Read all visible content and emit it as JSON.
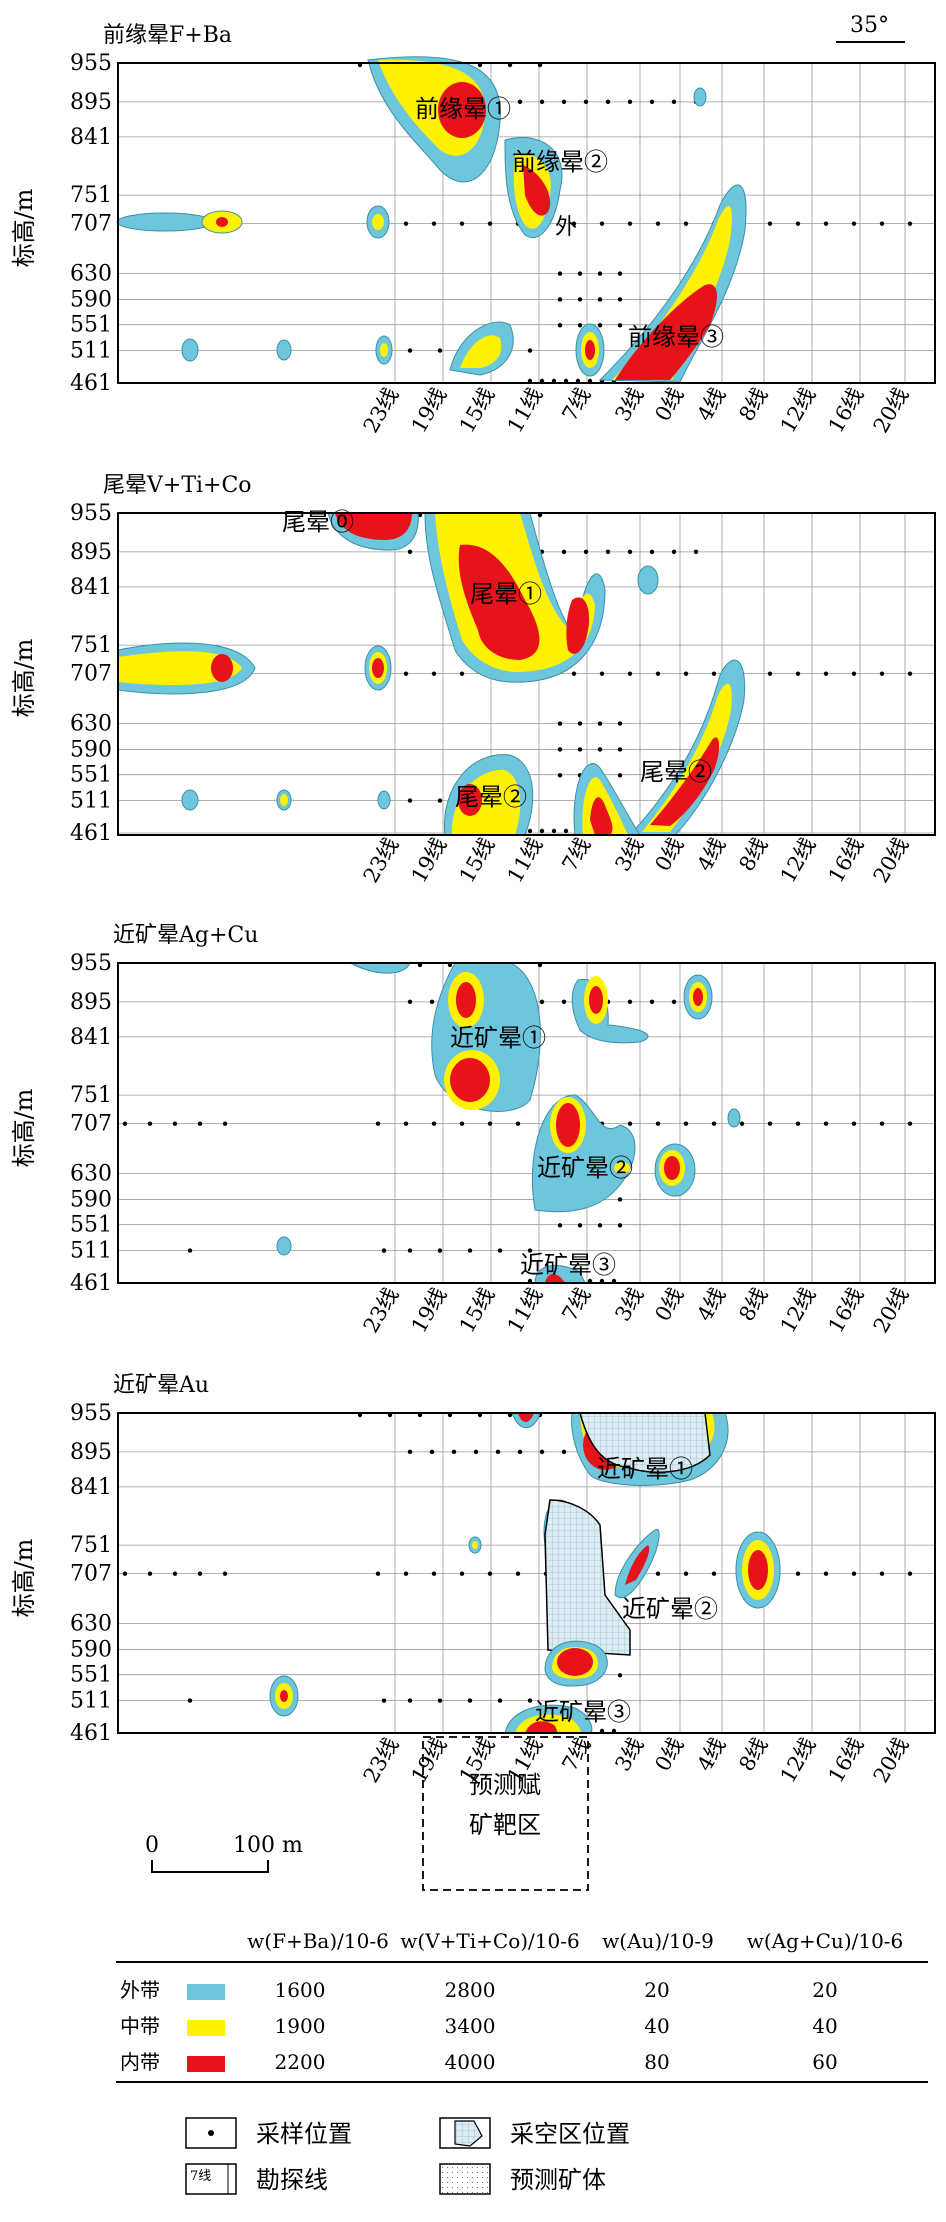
{
  "panels": [
    {
      "title": "前缘晕F+Ba",
      "labels": [
        {
          "text": "前缘晕①"
        },
        {
          "text": "前缘晕②"
        },
        {
          "text": "外"
        },
        {
          "text": "前缘晕③"
        }
      ]
    },
    {
      "title": "尾晕V+Ti+Co",
      "labels": [
        {
          "text": "尾晕⓪"
        },
        {
          "text": "尾晕①"
        },
        {
          "text": "尾晕②"
        },
        {
          "text": "尾晕②"
        }
      ]
    },
    {
      "title": "近矿晕Ag+Cu",
      "labels": [
        {
          "text": "近矿晕①"
        },
        {
          "text": "近矿晕②"
        },
        {
          "text": "近矿晕③"
        }
      ]
    },
    {
      "title": "近矿晕Au",
      "labels": [
        {
          "text": "近矿晕①"
        },
        {
          "text": "近矿晕②"
        },
        {
          "text": "近矿晕③"
        }
      ]
    }
  ],
  "y_axis_label": "标高/m",
  "elevations": [
    "955",
    "895",
    "841",
    "751",
    "707",
    "630",
    "590",
    "551",
    "511",
    "461"
  ],
  "lines": [
    "23线",
    "19线",
    "15线",
    "11线",
    "7线",
    "3线",
    "0线",
    "4线",
    "8线",
    "12线",
    "16线",
    "20线"
  ],
  "north_arrow": "35°",
  "scale": {
    "zero": "0",
    "length": "100 m"
  },
  "target_box": {
    "line1": "预测赋",
    "line2": "矿靶区"
  },
  "legend_table": {
    "headers": [
      "w(F+Ba)/10-6",
      "w(V+Ti+Co)/10-6",
      "w(Au)/10-9",
      "w(Ag+Cu)/10-6"
    ],
    "rows": [
      {
        "zone": "外带",
        "color": "#6ec6dd",
        "values": [
          "1600",
          "2800",
          "20",
          "20"
        ]
      },
      {
        "zone": "中带",
        "color": "#fff200",
        "values": [
          "1900",
          "3400",
          "40",
          "40"
        ]
      },
      {
        "zone": "内带",
        "color": "#e8121b",
        "values": [
          "2200",
          "4000",
          "80",
          "60"
        ]
      }
    ]
  },
  "symbol_legend": [
    {
      "icon": "sample-point-icon",
      "label": "采样位置"
    },
    {
      "icon": "mined-area-icon",
      "label": "采空区位置"
    },
    {
      "icon": "survey-line-icon",
      "label": "勘探线",
      "icon_text": "7线"
    },
    {
      "icon": "predicted-orebody-icon",
      "label": "预测矿体"
    }
  ]
}
